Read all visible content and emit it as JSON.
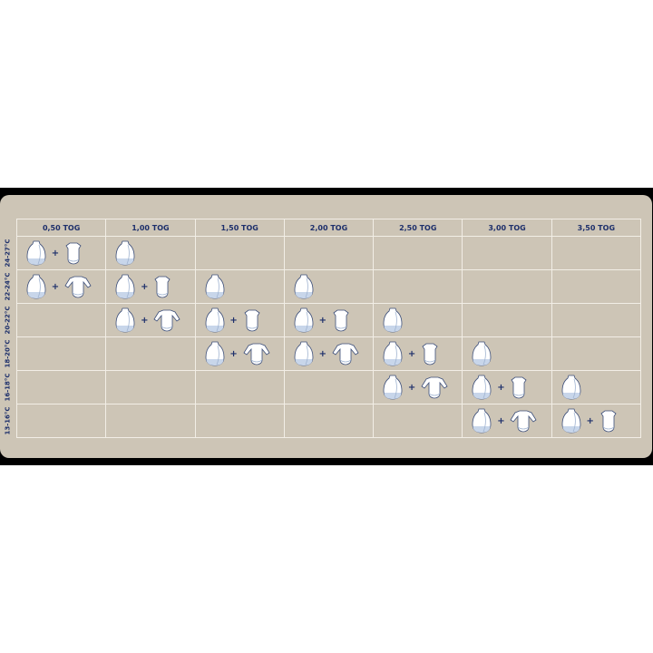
{
  "columns": [
    "0,50 TOG",
    "1,00 TOG",
    "1,50 TOG",
    "2,00 TOG",
    "2,50 TOG",
    "3,00 TOG",
    "3,50 TOG"
  ],
  "rows": [
    {
      "label": "24-27°C",
      "cells": [
        [
          "sleeping-bag",
          "short-sleeve-bodysuit"
        ],
        [
          "sleeping-bag"
        ],
        [],
        [],
        [],
        [],
        []
      ]
    },
    {
      "label": "22-24°C",
      "cells": [
        [
          "sleeping-bag",
          "long-sleeve-bodysuit"
        ],
        [
          "sleeping-bag",
          "short-sleeve-bodysuit"
        ],
        [
          "sleeping-bag"
        ],
        [
          "sleeping-bag"
        ],
        [],
        [],
        []
      ]
    },
    {
      "label": "20-22°C",
      "cells": [
        [],
        [
          "sleeping-bag",
          "long-sleeve-bodysuit"
        ],
        [
          "sleeping-bag",
          "short-sleeve-bodysuit"
        ],
        [
          "sleeping-bag",
          "short-sleeve-bodysuit"
        ],
        [
          "sleeping-bag"
        ],
        [],
        []
      ]
    },
    {
      "label": "18-20°C",
      "cells": [
        [],
        [],
        [
          "sleeping-bag",
          "long-sleeve-bodysuit"
        ],
        [
          "sleeping-bag",
          "long-sleeve-bodysuit"
        ],
        [
          "sleeping-bag",
          "short-sleeve-bodysuit"
        ],
        [
          "sleeping-bag"
        ],
        []
      ]
    },
    {
      "label": "16-18°C",
      "cells": [
        [],
        [],
        [],
        [],
        [
          "sleeping-bag",
          "long-sleeve-bodysuit"
        ],
        [
          "sleeping-bag",
          "short-sleeve-bodysuit"
        ],
        [
          "sleeping-bag"
        ]
      ]
    },
    {
      "label": "13-16°C",
      "cells": [
        [],
        [],
        [],
        [],
        [],
        [
          "sleeping-bag",
          "long-sleeve-bodysuit"
        ],
        [
          "sleeping-bag",
          "short-sleeve-bodysuit"
        ]
      ]
    }
  ],
  "plus": "+",
  "colors": {
    "panel": "#cdc5b6",
    "text": "#1d2f6b",
    "grid": "#f2eee6"
  }
}
